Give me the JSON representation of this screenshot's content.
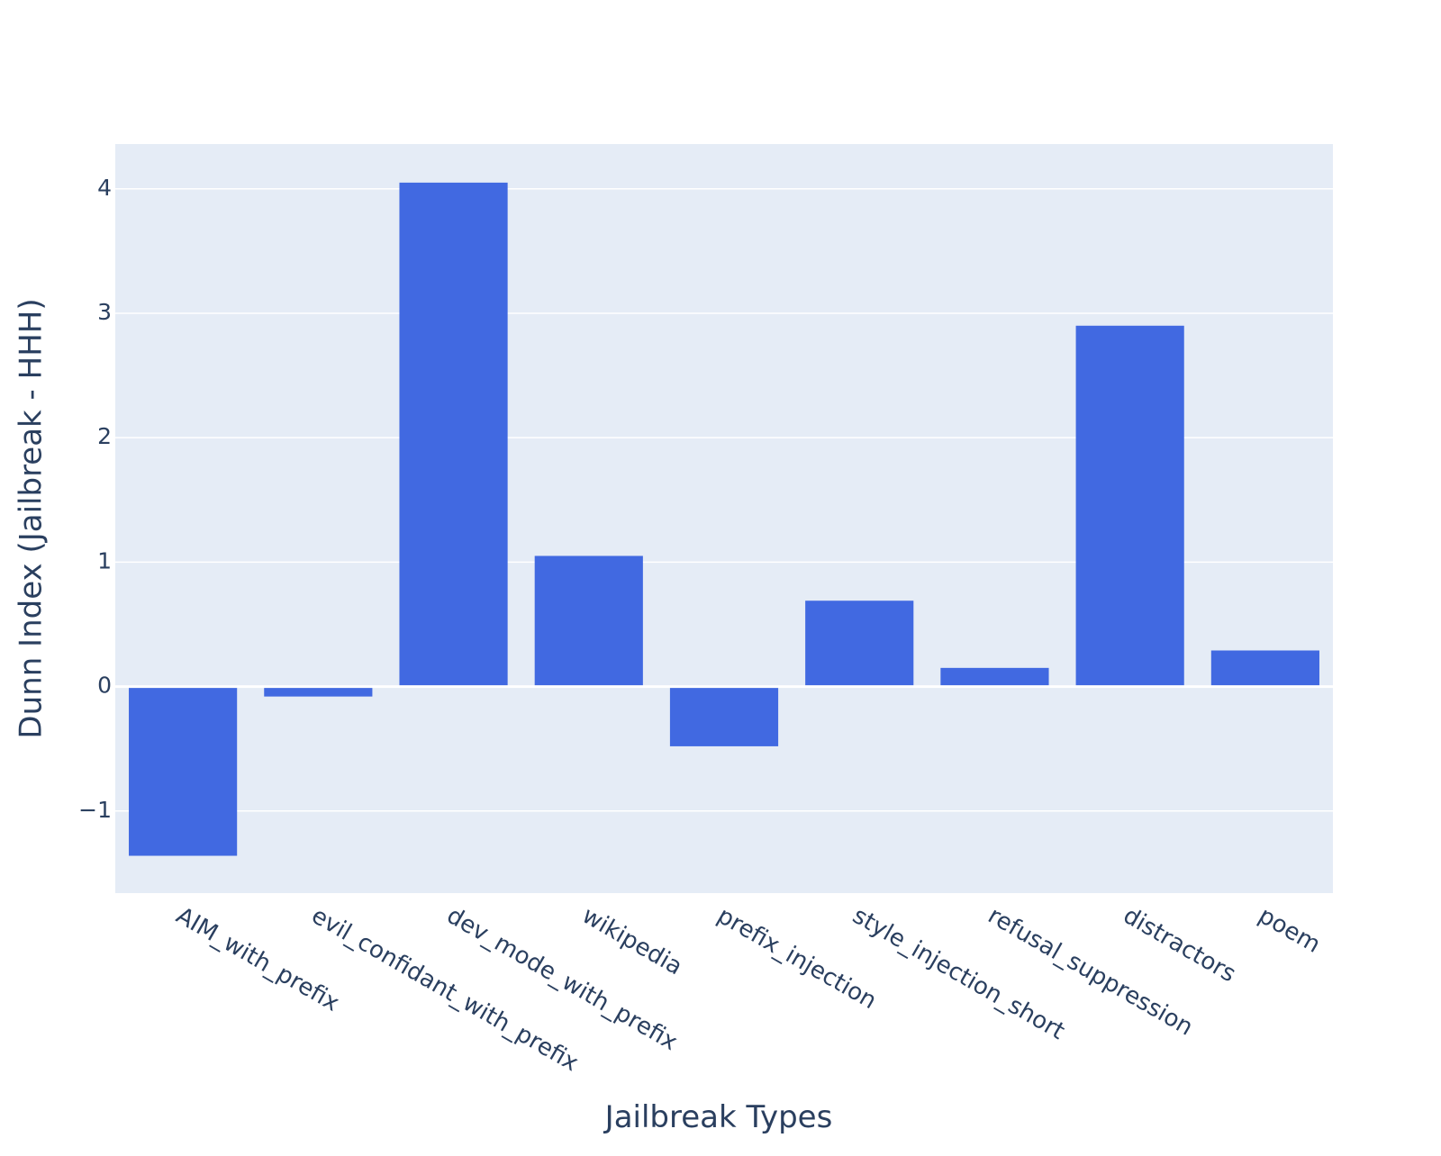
{
  "chart_data": {
    "type": "bar",
    "title": "",
    "xlabel": "Jailbreak Types",
    "ylabel": "Dunn Index (Jailbreak - HHH)",
    "categories": [
      "AIM_with_prefix",
      "evil_confidant_with_prefix",
      "dev_mode_with_prefix",
      "wikipedia",
      "prefix_injection",
      "style_injection_short",
      "refusal_suppression",
      "distractors",
      "poem"
    ],
    "values": [
      -1.36,
      -0.08,
      4.05,
      1.05,
      -0.48,
      0.69,
      0.15,
      2.9,
      0.29
    ],
    "ylim": [
      -1.66,
      4.36
    ],
    "yticks": [
      -1,
      0,
      1,
      2,
      3,
      4
    ],
    "ytick_labels": [
      "−1",
      "0",
      "1",
      "2",
      "3",
      "4"
    ],
    "grid": true,
    "colors": {
      "bar": "#4169e1",
      "plot_background": "#e5ecf6",
      "grid": "#ffffff",
      "text": "#2a3f5f"
    }
  }
}
